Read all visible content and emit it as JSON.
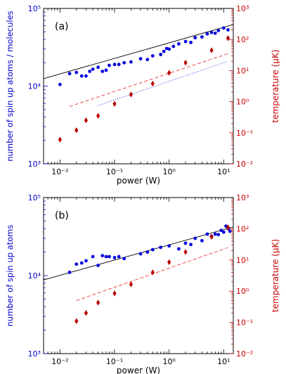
{
  "chart_data": [
    {
      "type": "scatter",
      "panel_label": "(a)",
      "xlabel": "power (W)",
      "ylabel_left": "number of spin up atoms /  molecules",
      "ylabel_right": "temperature (μK)",
      "x_scale": "log",
      "y_left_scale": "log",
      "y_right_scale": "log",
      "xlim": [
        0.005,
        15
      ],
      "ylim_left": [
        1000,
        100000
      ],
      "ylim_right": [
        0.01,
        1000
      ],
      "x_tick_labels": [
        "10⁻²",
        "10⁻¹",
        "10⁰",
        "10¹"
      ],
      "y_left_tick_labels": [
        "10³",
        "10⁴",
        "10⁵"
      ],
      "y_right_tick_labels": [
        "10⁻²",
        "10⁻¹",
        "10⁰",
        "10¹",
        "10²",
        "10³"
      ],
      "left_axis_color": "#0000cc",
      "right_axis_color": "#cc0000",
      "series": [
        {
          "marker": "circle",
          "color": "#0000dd",
          "axis": "left",
          "points": [
            [
              0.01,
              10500
            ],
            [
              0.015,
              14500
            ],
            [
              0.02,
              15000
            ],
            [
              0.025,
              13500
            ],
            [
              0.03,
              13500
            ],
            [
              0.035,
              15500
            ],
            [
              0.04,
              16500
            ],
            [
              0.05,
              17500
            ],
            [
              0.06,
              15500
            ],
            [
              0.07,
              16000
            ],
            [
              0.08,
              18500
            ],
            [
              0.1,
              19000
            ],
            [
              0.12,
              19000
            ],
            [
              0.15,
              20000
            ],
            [
              0.2,
              20500
            ],
            [
              0.3,
              22500
            ],
            [
              0.4,
              22000
            ],
            [
              0.5,
              24500
            ],
            [
              0.7,
              25500
            ],
            [
              0.8,
              28000
            ],
            [
              0.9,
              30500
            ],
            [
              1.0,
              30000
            ],
            [
              1.2,
              32500
            ],
            [
              1.5,
              35000
            ],
            [
              2.0,
              37500
            ],
            [
              2.5,
              36500
            ],
            [
              3.0,
              42000
            ],
            [
              4.0,
              43000
            ],
            [
              5.0,
              47000
            ],
            [
              6.0,
              49000
            ],
            [
              7.0,
              48000
            ],
            [
              8.0,
              52000
            ],
            [
              10.0,
              56000
            ],
            [
              12.0,
              53000
            ]
          ]
        },
        {
          "marker": "diamond",
          "color": "#bb0000",
          "axis": "right",
          "points": [
            [
              0.01,
              0.06
            ],
            [
              0.02,
              0.12
            ],
            [
              0.03,
              0.25
            ],
            [
              0.05,
              0.35
            ],
            [
              0.1,
              0.85
            ],
            [
              0.2,
              1.7
            ],
            [
              0.5,
              3.8
            ],
            [
              1.0,
              8.5
            ],
            [
              2.0,
              18
            ],
            [
              6.0,
              45
            ],
            [
              12.0,
              110
            ]
          ]
        }
      ],
      "fits": [
        {
          "style": "solid",
          "color": "#000000",
          "axis": "left",
          "x": [
            0.005,
            15
          ],
          "y": [
            12500,
            62000
          ]
        },
        {
          "style": "dashed",
          "color": "#ee3333",
          "axis": "right",
          "x": [
            0.015,
            12
          ],
          "y": [
            0.7,
            35
          ]
        },
        {
          "style": "dotted",
          "color": "#3333ee",
          "axis": "right",
          "x": [
            0.05,
            12
          ],
          "y": [
            0.75,
            20
          ]
        }
      ]
    },
    {
      "type": "scatter",
      "panel_label": "(b)",
      "xlabel": "power (W)",
      "ylabel_left": "number of spin up atoms",
      "ylabel_right": "temperature (μK)",
      "x_scale": "log",
      "y_left_scale": "log",
      "y_right_scale": "log",
      "xlim": [
        0.005,
        15
      ],
      "ylim_left": [
        1000,
        100000
      ],
      "ylim_right": [
        0.01,
        1000
      ],
      "x_tick_labels": [
        "10⁻²",
        "10⁻¹",
        "10⁰",
        "10¹"
      ],
      "y_left_tick_labels": [
        "10³",
        "10⁴",
        "10⁵"
      ],
      "y_right_tick_labels": [
        "10⁻²",
        "10⁻¹",
        "10⁰",
        "10¹",
        "10²",
        "10³"
      ],
      "left_axis_color": "#0000cc",
      "right_axis_color": "#cc0000",
      "series": [
        {
          "marker": "circle",
          "color": "#0000dd",
          "axis": "left",
          "points": [
            [
              0.015,
              11000
            ],
            [
              0.02,
              14000
            ],
            [
              0.025,
              14500
            ],
            [
              0.03,
              15500
            ],
            [
              0.04,
              17500
            ],
            [
              0.05,
              13500
            ],
            [
              0.06,
              18000
            ],
            [
              0.07,
              17500
            ],
            [
              0.08,
              17500
            ],
            [
              0.1,
              17000
            ],
            [
              0.12,
              17500
            ],
            [
              0.15,
              16500
            ],
            [
              0.3,
              19000
            ],
            [
              0.4,
              20000
            ],
            [
              0.5,
              21500
            ],
            [
              0.7,
              23000
            ],
            [
              1.0,
              24000
            ],
            [
              1.5,
              22000
            ],
            [
              2.0,
              26000
            ],
            [
              2.5,
              25000
            ],
            [
              3.0,
              30000
            ],
            [
              4.0,
              28000
            ],
            [
              5.0,
              34000
            ],
            [
              6.0,
              32000
            ],
            [
              7.0,
              34000
            ],
            [
              8.0,
              33500
            ],
            [
              9.0,
              38000
            ],
            [
              10.0,
              36000
            ],
            [
              11.0,
              43000
            ],
            [
              12.0,
              40000
            ],
            [
              13.0,
              37000
            ]
          ]
        },
        {
          "marker": "diamond",
          "color": "#bb0000",
          "axis": "right",
          "points": [
            [
              0.02,
              0.11
            ],
            [
              0.03,
              0.2
            ],
            [
              0.05,
              0.43
            ],
            [
              0.1,
              0.85
            ],
            [
              0.2,
              1.65
            ],
            [
              0.5,
              4.0
            ],
            [
              1.0,
              8.5
            ],
            [
              2.0,
              18
            ],
            [
              6.0,
              55
            ],
            [
              12.0,
              110
            ]
          ]
        }
      ],
      "fits": [
        {
          "style": "solid",
          "color": "#000000",
          "axis": "left",
          "x": [
            0.005,
            15
          ],
          "y": [
            8800,
            42000
          ]
        },
        {
          "style": "dashed",
          "color": "#ee3333",
          "axis": "right",
          "x": [
            0.02,
            12
          ],
          "y": [
            0.5,
            25
          ]
        }
      ]
    }
  ]
}
